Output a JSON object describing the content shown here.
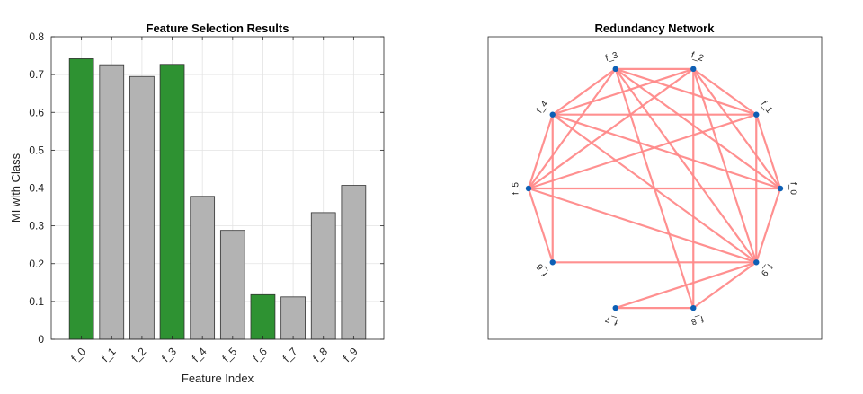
{
  "chart_data": [
    {
      "type": "bar",
      "title": "Feature Selection Results",
      "xlabel": "Feature Index",
      "ylabel": "MI with Class",
      "categories": [
        "f_0",
        "f_1",
        "f_2",
        "f_3",
        "f_4",
        "f_5",
        "f_6",
        "f_7",
        "f_8",
        "f_9"
      ],
      "values": [
        0.742,
        0.726,
        0.695,
        0.727,
        0.378,
        0.288,
        0.118,
        0.112,
        0.335,
        0.407
      ],
      "selected": [
        true,
        false,
        false,
        true,
        false,
        false,
        true,
        false,
        false,
        false
      ],
      "ylim": [
        0,
        0.8
      ],
      "yticks": [
        "0",
        "0.1",
        "0.2",
        "0.3",
        "0.4",
        "0.5",
        "0.6",
        "0.7",
        "0.8"
      ],
      "grid": true,
      "colors": {
        "selected": "#2e9232",
        "unselected": "#b3b3b3",
        "edge": "#333333"
      }
    },
    {
      "type": "network",
      "title": "Redundancy Network",
      "nodes": [
        "f_0",
        "f_1",
        "f_2",
        "f_3",
        "f_4",
        "f_5",
        "f_6",
        "f_7",
        "f_8",
        "f_9"
      ],
      "edges": [
        [
          0,
          1
        ],
        [
          0,
          2
        ],
        [
          0,
          3
        ],
        [
          0,
          4
        ],
        [
          0,
          5
        ],
        [
          0,
          9
        ],
        [
          1,
          2
        ],
        [
          1,
          3
        ],
        [
          1,
          4
        ],
        [
          1,
          5
        ],
        [
          1,
          9
        ],
        [
          2,
          3
        ],
        [
          2,
          4
        ],
        [
          2,
          5
        ],
        [
          2,
          8
        ],
        [
          2,
          9
        ],
        [
          3,
          4
        ],
        [
          3,
          5
        ],
        [
          3,
          8
        ],
        [
          3,
          9
        ],
        [
          4,
          5
        ],
        [
          4,
          6
        ],
        [
          4,
          9
        ],
        [
          5,
          6
        ],
        [
          5,
          9
        ],
        [
          6,
          9
        ],
        [
          7,
          8
        ],
        [
          7,
          9
        ],
        [
          8,
          9
        ]
      ],
      "colors": {
        "node": "#0d5fb5",
        "edge": "#ff8a8a"
      }
    }
  ]
}
